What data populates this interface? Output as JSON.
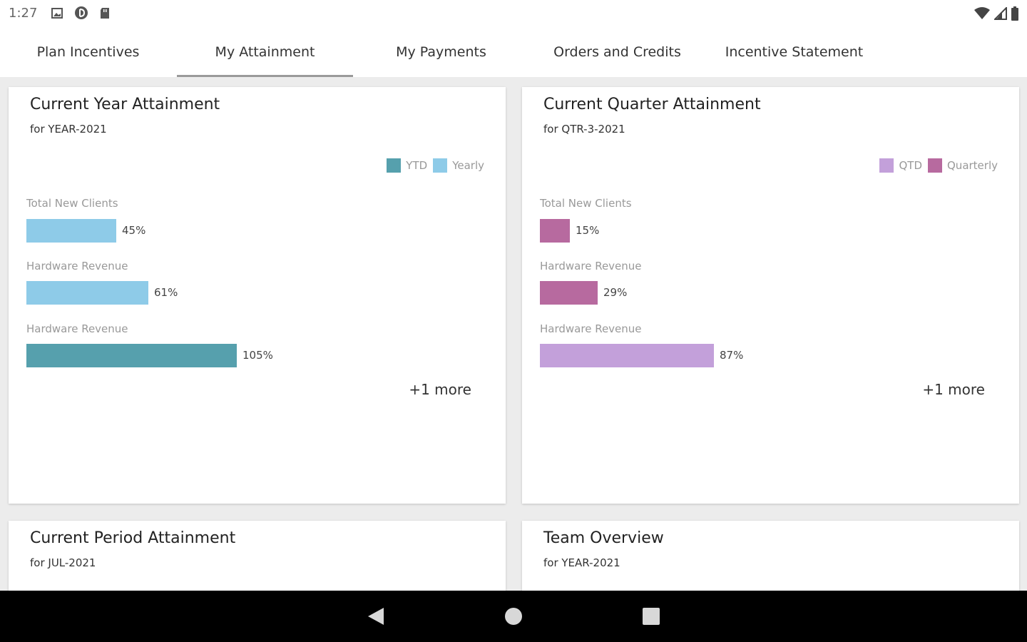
{
  "status_bar": {
    "time": "1:27",
    "left_icons": [
      "photo-icon",
      "circle-d-icon",
      "sd-card-icon"
    ],
    "right_icons": [
      "wifi-icon",
      "signal-icon",
      "battery-icon"
    ]
  },
  "tabs": [
    {
      "label": "Plan Incentives",
      "active": false
    },
    {
      "label": "My Attainment",
      "active": true
    },
    {
      "label": "My Payments",
      "active": false
    },
    {
      "label": "Orders and Credits",
      "active": false
    },
    {
      "label": "Incentive Statement",
      "active": false
    }
  ],
  "cards": {
    "year": {
      "title": "Current Year Attainment",
      "subtitle": "for YEAR-2021",
      "legend": [
        {
          "label": "YTD",
          "color": "#56a0ad"
        },
        {
          "label": "Yearly",
          "color": "#8ecbe8"
        }
      ],
      "metrics": [
        {
          "label": "Total New Clients",
          "value": "45%",
          "percent": 45,
          "color": "#8ecbe8"
        },
        {
          "label": "Hardware Revenue",
          "value": "61%",
          "percent": 61,
          "color": "#8ecbe8"
        },
        {
          "label": "Hardware Revenue",
          "value": "105%",
          "percent": 105,
          "color": "#56a0ad"
        }
      ],
      "more": "+1 more"
    },
    "quarter": {
      "title": "Current Quarter Attainment",
      "subtitle": "for QTR-3-2021",
      "legend": [
        {
          "label": "QTD",
          "color": "#c3a0da"
        },
        {
          "label": "Quarterly",
          "color": "#b76a9f"
        }
      ],
      "metrics": [
        {
          "label": "Total New Clients",
          "value": "15%",
          "percent": 15,
          "color": "#b76a9f"
        },
        {
          "label": "Hardware Revenue",
          "value": "29%",
          "percent": 29,
          "color": "#b76a9f"
        },
        {
          "label": "Hardware Revenue",
          "value": "87%",
          "percent": 87,
          "color": "#c3a0da"
        }
      ],
      "more": "+1 more"
    },
    "period": {
      "title": "Current Period Attainment",
      "subtitle": "for JUL-2021"
    },
    "team": {
      "title": "Team Overview",
      "subtitle": "for YEAR-2021"
    }
  },
  "nav_bar": {
    "buttons": [
      "back-icon",
      "home-icon",
      "recents-icon"
    ]
  }
}
